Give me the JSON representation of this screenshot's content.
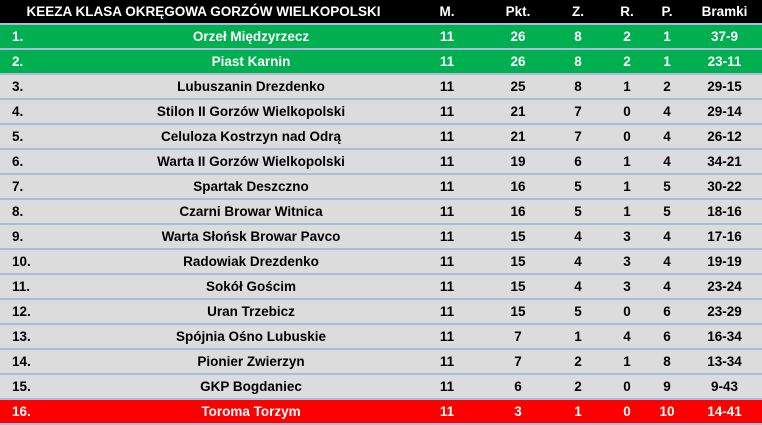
{
  "header": {
    "title": "KEEZA KLASA OKRĘGOWA GORZÓW WIELKOPOLSKI",
    "m": "M.",
    "pkt": "Pkt.",
    "z": "Z.",
    "r": "R.",
    "p": "P.",
    "bramki": "Bramki"
  },
  "colors": {
    "promotion": "#00b050",
    "relegation": "#ff0000",
    "default": "#dcdcdc",
    "header": "#000000"
  },
  "rows": [
    {
      "pos": "1.",
      "team": "Orzeł Międzyrzecz",
      "m": "11",
      "pkt": "26",
      "z": "8",
      "r": "2",
      "p": "1",
      "bramki": "37-9",
      "status": "promo"
    },
    {
      "pos": "2.",
      "team": "Piast Karnin",
      "m": "11",
      "pkt": "26",
      "z": "8",
      "r": "2",
      "p": "1",
      "bramki": "23-11",
      "status": "promo"
    },
    {
      "pos": "3.",
      "team": "Lubuszanin Drezdenko",
      "m": "11",
      "pkt": "25",
      "z": "8",
      "r": "1",
      "p": "2",
      "bramki": "29-15",
      "status": "row"
    },
    {
      "pos": "4.",
      "team": "Stilon II Gorzów Wielkopolski",
      "m": "11",
      "pkt": "21",
      "z": "7",
      "r": "0",
      "p": "4",
      "bramki": "29-14",
      "status": "row"
    },
    {
      "pos": "5.",
      "team": "Celuloza Kostrzyn nad Odrą",
      "m": "11",
      "pkt": "21",
      "z": "7",
      "r": "0",
      "p": "4",
      "bramki": "26-12",
      "status": "row"
    },
    {
      "pos": "6.",
      "team": "Warta II Gorzów Wielkopolski",
      "m": "11",
      "pkt": "19",
      "z": "6",
      "r": "1",
      "p": "4",
      "bramki": "34-21",
      "status": "row"
    },
    {
      "pos": "7.",
      "team": "Spartak Deszczno",
      "m": "11",
      "pkt": "16",
      "z": "5",
      "r": "1",
      "p": "5",
      "bramki": "30-22",
      "status": "row"
    },
    {
      "pos": "8.",
      "team": "Czarni Browar Witnica",
      "m": "11",
      "pkt": "16",
      "z": "5",
      "r": "1",
      "p": "5",
      "bramki": "18-16",
      "status": "row"
    },
    {
      "pos": "9.",
      "team": "Warta Słońsk Browar Pavco",
      "m": "11",
      "pkt": "15",
      "z": "4",
      "r": "3",
      "p": "4",
      "bramki": "17-16",
      "status": "row"
    },
    {
      "pos": "10.",
      "team": "Radowiak Drezdenko",
      "m": "11",
      "pkt": "15",
      "z": "4",
      "r": "3",
      "p": "4",
      "bramki": "19-19",
      "status": "row"
    },
    {
      "pos": "11.",
      "team": "Sokół Gościm",
      "m": "11",
      "pkt": "15",
      "z": "4",
      "r": "3",
      "p": "4",
      "bramki": "23-24",
      "status": "row"
    },
    {
      "pos": "12.",
      "team": "Uran Trzebicz",
      "m": "11",
      "pkt": "15",
      "z": "5",
      "r": "0",
      "p": "6",
      "bramki": "23-29",
      "status": "row"
    },
    {
      "pos": "13.",
      "team": "Spójnia Ośno Lubuskie",
      "m": "11",
      "pkt": "7",
      "z": "1",
      "r": "4",
      "p": "6",
      "bramki": "16-34",
      "status": "row"
    },
    {
      "pos": "14.",
      "team": "Pionier Zwierzyn",
      "m": "11",
      "pkt": "7",
      "z": "2",
      "r": "1",
      "p": "8",
      "bramki": "13-34",
      "status": "row"
    },
    {
      "pos": "15.",
      "team": "GKP Bogdaniec",
      "m": "11",
      "pkt": "6",
      "z": "2",
      "r": "0",
      "p": "9",
      "bramki": "9-43",
      "status": "row"
    },
    {
      "pos": "16.",
      "team": "Toroma Torzym",
      "m": "11",
      "pkt": "3",
      "z": "1",
      "r": "0",
      "p": "10",
      "bramki": "14-41",
      "status": "releg"
    }
  ]
}
